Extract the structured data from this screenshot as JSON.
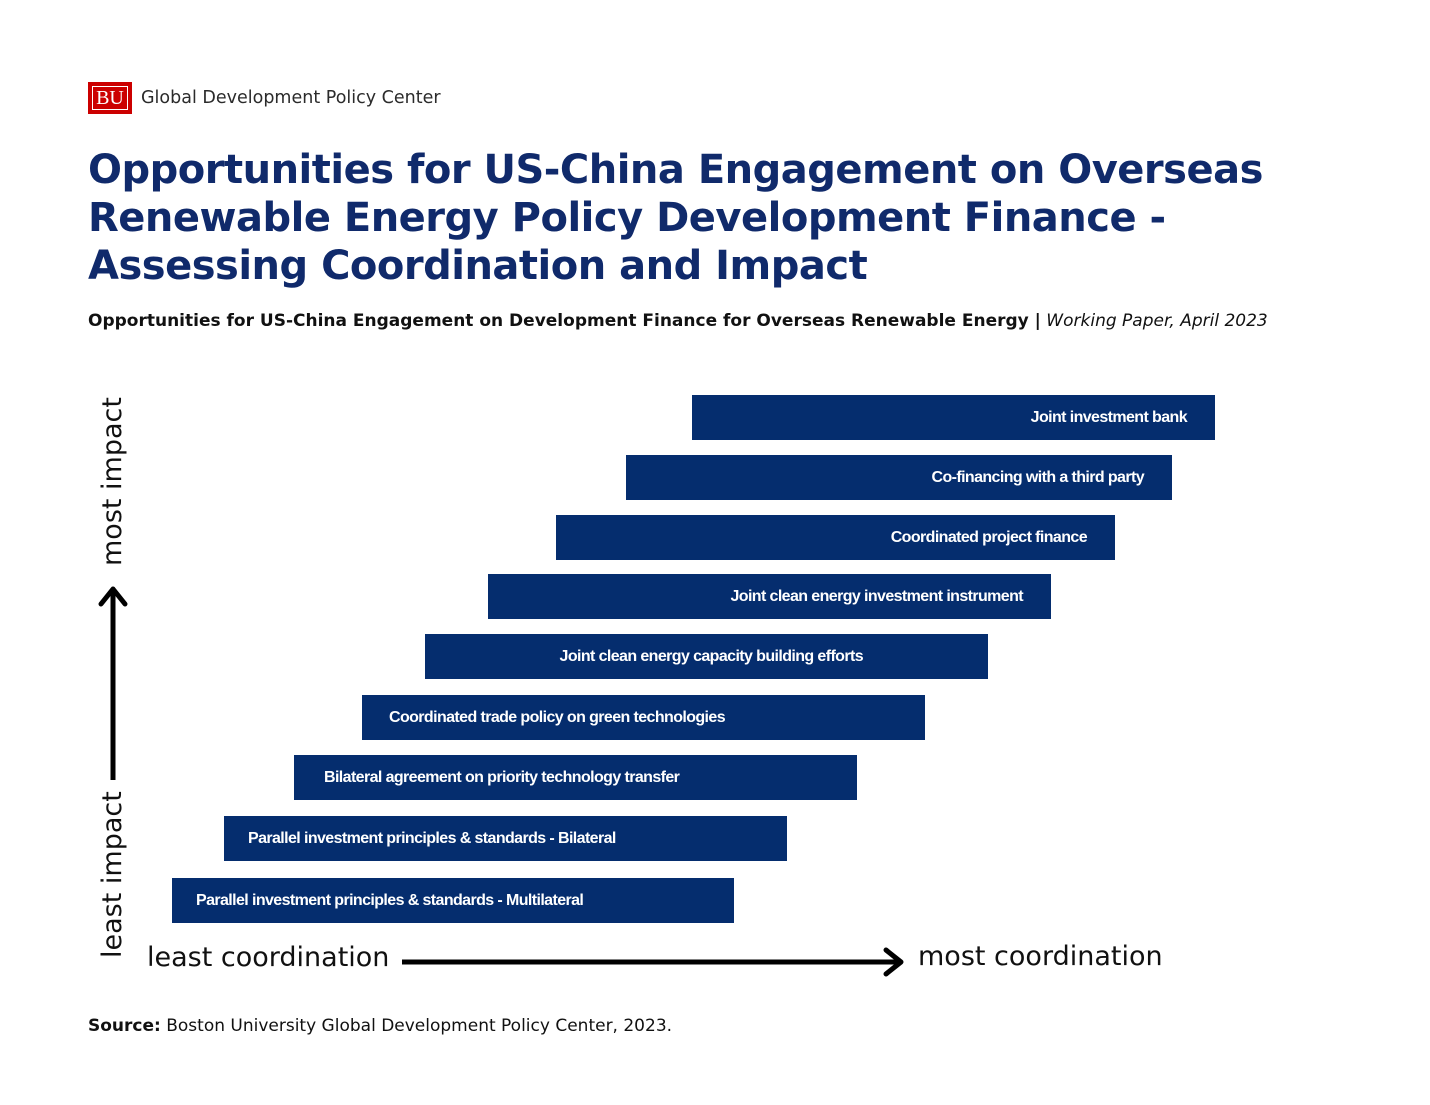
{
  "header": {
    "logo_text": "BU",
    "org_name": "Global Development Policy Center",
    "brand_red": "#cc0000"
  },
  "title": "Opportunities for US-China Engagement on Overseas Renewable Energy Policy Development Finance - Assessing Coordination and Impact",
  "subtitle": {
    "bold": "Opportunities for US-China Engagement on Development Finance for Overseas Renewable Energy |",
    "italic": "Working Paper, April 2023"
  },
  "diagram": {
    "bar_color": "#052d6e",
    "items": [
      "Joint investment bank",
      "Co-financing with a third party",
      "Coordinated project finance",
      "Joint clean energy investment instrument",
      "Joint clean energy capacity building efforts",
      "Coordinated trade policy on green technologies",
      "Bilateral agreement on priority technology transfer",
      "Parallel investment principles & standards  - Bilateral",
      "Parallel investment principles & standards  - Multilateral"
    ]
  },
  "axes": {
    "y_low": "least impact",
    "y_high": "most impact",
    "x_low": "least coordination",
    "x_high": "most coordination"
  },
  "source": {
    "label": "Source:",
    "text": "Boston University Global Development Policy Center, 2023."
  }
}
